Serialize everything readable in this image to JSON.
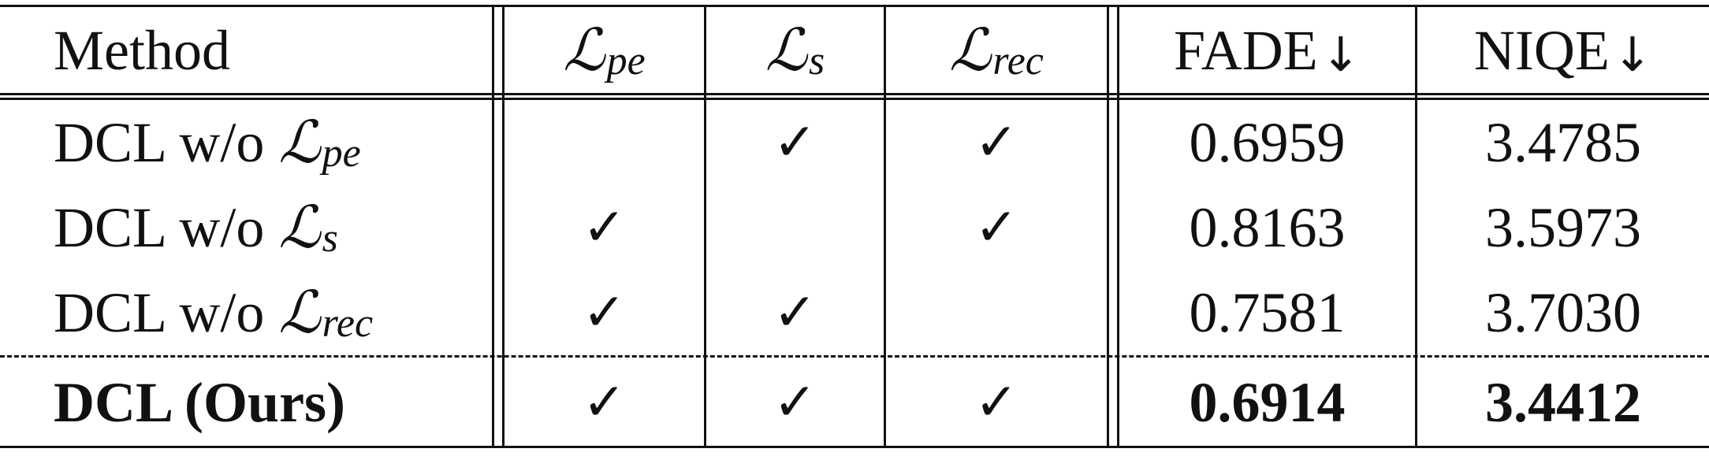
{
  "header": {
    "method": "Method",
    "l_pe": {
      "symbol": "ℒ",
      "sub": "pe"
    },
    "l_s": {
      "symbol": "ℒ",
      "sub": "s"
    },
    "l_rec": {
      "symbol": "ℒ",
      "sub": "rec"
    },
    "fade": "FADE",
    "niqe": "NIQE",
    "arrow": "↓"
  },
  "check_glyph": "✓",
  "rows": [
    {
      "prefix": "DCL w/o ",
      "symbol": "ℒ",
      "sub": "pe",
      "fade": "0.6959",
      "niqe": "3.4785"
    },
    {
      "prefix": "DCL w/o ",
      "symbol": "ℒ",
      "sub": "s",
      "fade": "0.8163",
      "niqe": "3.5973"
    },
    {
      "prefix": "DCL w/o ",
      "symbol": "ℒ",
      "sub": "rec",
      "fade": "0.7581",
      "niqe": "3.7030"
    }
  ],
  "ours": {
    "label": "DCL (Ours)",
    "fade": "0.6914",
    "niqe": "3.4412"
  }
}
